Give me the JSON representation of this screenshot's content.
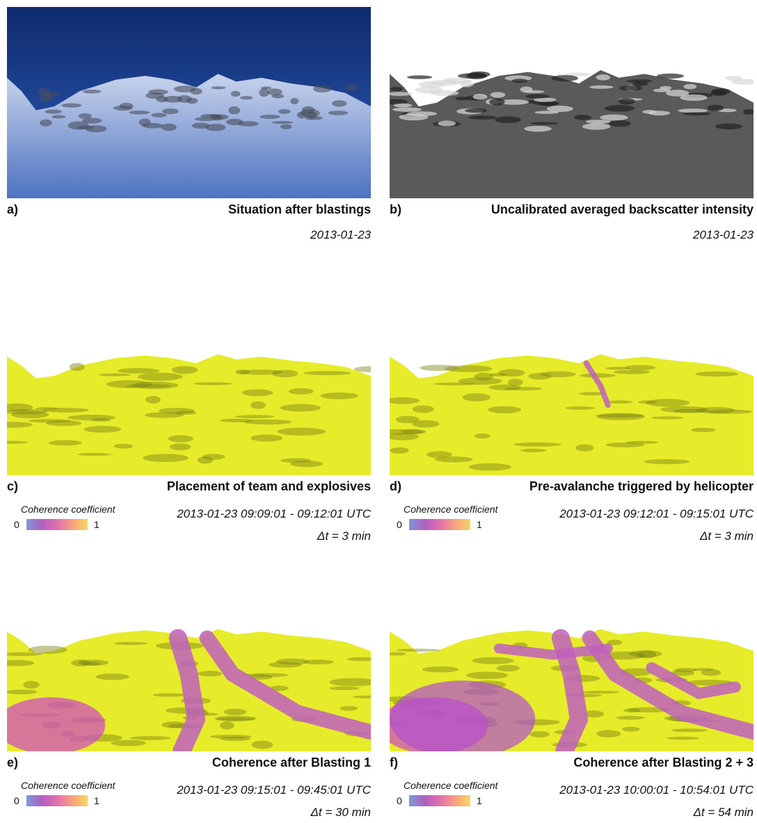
{
  "panels": [
    {
      "label": "a)",
      "title": "Situation after blastings",
      "date": "2013-01-23"
    },
    {
      "label": "b)",
      "title": "Uncalibrated averaged backscatter intensity",
      "date": "2013-01-23"
    },
    {
      "label": "c)",
      "title": "Placement of team and explosives",
      "time_range": "2013-01-23 09:09:01 - 09:12:01 UTC",
      "delta": "Δt = 3 min",
      "colorbar": {
        "title": "Coherence coefficient",
        "min": "0",
        "max": "1"
      }
    },
    {
      "label": "d)",
      "title": "Pre-avalanche triggered by helicopter",
      "time_range": "2013-01-23 09:12:01 - 09:15:01 UTC",
      "delta": "Δt = 3 min",
      "colorbar": {
        "title": "Coherence coefficient",
        "min": "0",
        "max": "1"
      }
    },
    {
      "label": "e)",
      "title": "Coherence after Blasting 1",
      "time_range": "2013-01-23 09:15:01 - 09:45:01 UTC",
      "delta": "Δt = 30 min",
      "colorbar": {
        "title": "Coherence coefficient",
        "min": "0",
        "max": "1"
      }
    },
    {
      "label": "f)",
      "title": "Coherence after Blasting 2 + 3",
      "time_range": "2013-01-23 10:00:01 - 10:54:01 UTC",
      "delta": "Δt = 54 min",
      "colorbar": {
        "title": "Coherence coefficient",
        "min": "0",
        "max": "1"
      }
    }
  ]
}
